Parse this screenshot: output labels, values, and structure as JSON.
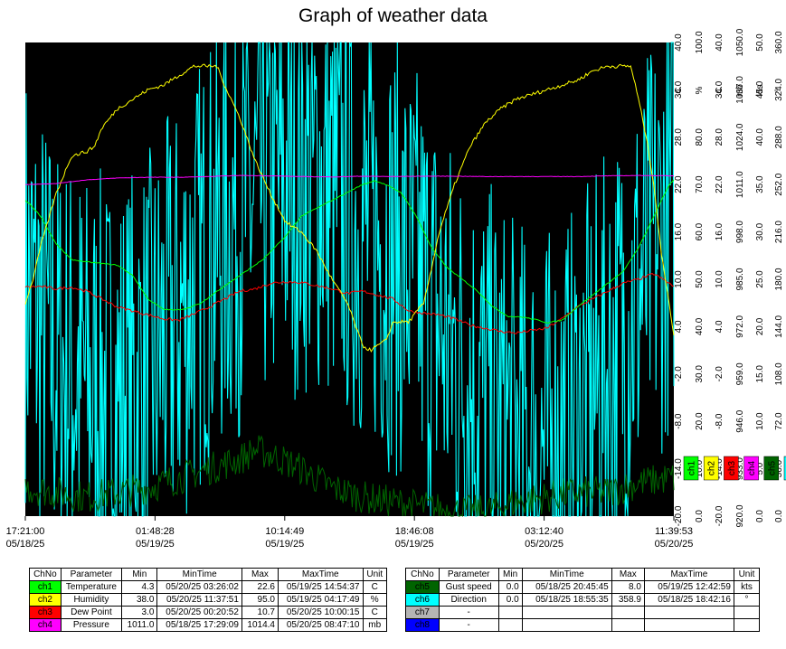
{
  "title": "Graph of weather data",
  "colors": {
    "plot_bg": "#000000",
    "ch1": "#00ff00",
    "ch2": "#ffff00",
    "ch3": "#ff0000",
    "ch4": "#ff00ff",
    "ch5": "#006400",
    "ch6": "#00ffff",
    "ch7": "#b4b4b4",
    "ch8": "#0000ff"
  },
  "chart_data": {
    "type": "line",
    "title": "Graph of weather data",
    "x_ticks": [
      {
        "time": "17:21:00",
        "date": "05/18/25"
      },
      {
        "time": "01:48:28",
        "date": "05/19/25"
      },
      {
        "time": "10:14:49",
        "date": "05/19/25"
      },
      {
        "time": "18:46:08",
        "date": "05/19/25"
      },
      {
        "time": "03:12:40",
        "date": "05/20/25"
      },
      {
        "time": "11:39:53",
        "date": "05/20/25"
      }
    ],
    "x_range_hours": [
      0,
      42.3
    ],
    "scales": [
      {
        "unit": "C",
        "ticks": [
          "40.0",
          "34.0",
          "28.0",
          "22.0",
          "16.0",
          "10.0",
          "4.0",
          "-2.0",
          "-8.0",
          "-14.0",
          "-20.0"
        ]
      },
      {
        "unit": "%",
        "ticks": [
          "100.0",
          "",
          "80.0",
          "70.0",
          "60.0",
          "50.0",
          "40.0",
          "30.0",
          "20.0",
          "10.0",
          "0.0"
        ]
      },
      {
        "unit": "C",
        "ticks": [
          "40.0",
          "34.0",
          "28.0",
          "22.0",
          "16.0",
          "10.0",
          "4.0",
          "-2.0",
          "-8.0",
          "-14.0",
          "-20.0"
        ]
      },
      {
        "unit": "mb",
        "ticks": [
          "1050.0",
          "1037.0",
          "1024.0",
          "1011.0",
          "998.0",
          "985.0",
          "972.0",
          "959.0",
          "946.0",
          "933.0",
          "920.0"
        ]
      },
      {
        "unit": "kts",
        "ticks": [
          "50.0",
          "45.0",
          "40.0",
          "35.0",
          "30.0",
          "25.0",
          "20.0",
          "15.0",
          "10.0",
          "5.0",
          "0.0"
        ]
      },
      {
        "unit": "°",
        "ticks": [
          "360.0",
          "324.0",
          "288.0",
          "252.0",
          "216.0",
          "180.0",
          "144.0",
          "108.0",
          "72.0",
          "36.0",
          "0.0"
        ]
      }
    ],
    "series": [
      {
        "name": "Temperature",
        "unit": "C",
        "channel": "ch1",
        "points": [
          [
            0,
            20
          ],
          [
            0.3,
            19.5
          ],
          [
            1,
            18
          ],
          [
            2,
            14.5
          ],
          [
            3,
            12.5
          ],
          [
            4,
            12.2
          ],
          [
            5,
            12
          ],
          [
            6,
            11.8
          ],
          [
            7,
            10.5
          ],
          [
            8,
            7.5
          ],
          [
            9,
            6.2
          ],
          [
            9.8,
            6.1
          ],
          [
            10.5,
            6.3
          ],
          [
            11.5,
            7
          ],
          [
            12.5,
            8.5
          ],
          [
            14,
            10.5
          ],
          [
            15.5,
            12.5
          ],
          [
            17,
            15.5
          ],
          [
            18,
            18
          ],
          [
            19,
            19
          ],
          [
            20,
            20
          ],
          [
            21,
            21
          ],
          [
            22,
            22
          ],
          [
            22.8,
            22.5
          ],
          [
            23.5,
            22
          ],
          [
            24.5,
            21
          ],
          [
            25.5,
            18
          ],
          [
            26.5,
            14
          ],
          [
            27.5,
            11.5
          ],
          [
            28.5,
            10
          ],
          [
            29.5,
            8.5
          ],
          [
            30.5,
            6.5
          ],
          [
            31.5,
            5.3
          ],
          [
            32.5,
            5.2
          ],
          [
            33.5,
            4.8
          ],
          [
            34,
            4.5
          ],
          [
            35,
            4.8
          ],
          [
            36,
            6.5
          ],
          [
            37,
            8
          ],
          [
            38,
            9.5
          ],
          [
            39,
            11
          ],
          [
            40,
            14
          ],
          [
            41,
            18
          ],
          [
            42,
            22
          ],
          [
            42.3,
            22.6
          ]
        ]
      },
      {
        "name": "Humidity",
        "unit": "%",
        "channel": "ch2",
        "points": [
          [
            0,
            45
          ],
          [
            0.5,
            50
          ],
          [
            1,
            57
          ],
          [
            2,
            68
          ],
          [
            3,
            76
          ],
          [
            4,
            77
          ],
          [
            4.5,
            78
          ],
          [
            5,
            82
          ],
          [
            6,
            86
          ],
          [
            7,
            88
          ],
          [
            8,
            90
          ],
          [
            9,
            91
          ],
          [
            10,
            93
          ],
          [
            11,
            95
          ],
          [
            12.5,
            95
          ],
          [
            13,
            91
          ],
          [
            14,
            84
          ],
          [
            15,
            75
          ],
          [
            16,
            68
          ],
          [
            17,
            62
          ],
          [
            18,
            60
          ],
          [
            19,
            56
          ],
          [
            20,
            50
          ],
          [
            21,
            45
          ],
          [
            22,
            36
          ],
          [
            22.5,
            35
          ],
          [
            23.5,
            37
          ],
          [
            24,
            41
          ],
          [
            25,
            41
          ],
          [
            26,
            45
          ],
          [
            27,
            60
          ],
          [
            28,
            70
          ],
          [
            29,
            78
          ],
          [
            30,
            83
          ],
          [
            31,
            86
          ],
          [
            32,
            88
          ],
          [
            33,
            89
          ],
          [
            34,
            90
          ],
          [
            35,
            91
          ],
          [
            36,
            92
          ],
          [
            37,
            94
          ],
          [
            38,
            95
          ],
          [
            39.5,
            95
          ],
          [
            40,
            88
          ],
          [
            40.5,
            80
          ],
          [
            41,
            70
          ],
          [
            41.5,
            55
          ],
          [
            42,
            45
          ],
          [
            42.3,
            38
          ]
        ]
      },
      {
        "name": "Dew Point",
        "unit": "C",
        "channel": "ch3",
        "points": [
          [
            0,
            9
          ],
          [
            1,
            9.1
          ],
          [
            2,
            8.8
          ],
          [
            3,
            9
          ],
          [
            4,
            8.5
          ],
          [
            5,
            7.5
          ],
          [
            6,
            6.5
          ],
          [
            7,
            6
          ],
          [
            8,
            5.5
          ],
          [
            9,
            5
          ],
          [
            10,
            4.8
          ],
          [
            11,
            5.6
          ],
          [
            12,
            6.5
          ],
          [
            13,
            7.5
          ],
          [
            14,
            8.5
          ],
          [
            15,
            8.8
          ],
          [
            16,
            9.5
          ],
          [
            17,
            9.7
          ],
          [
            18,
            9.6
          ],
          [
            19,
            9.2
          ],
          [
            20,
            8.8
          ],
          [
            21,
            8.2
          ],
          [
            22,
            8.5
          ],
          [
            23,
            8
          ],
          [
            24,
            7.5
          ],
          [
            25,
            6
          ],
          [
            26,
            5.7
          ],
          [
            27,
            5.5
          ],
          [
            28,
            5
          ],
          [
            29,
            4.2
          ],
          [
            30,
            3.8
          ],
          [
            31,
            3.4
          ],
          [
            32,
            3.2
          ],
          [
            33,
            3.5
          ],
          [
            34,
            3.8
          ],
          [
            35,
            5
          ],
          [
            36,
            6.5
          ],
          [
            37,
            7.5
          ],
          [
            38,
            8.5
          ],
          [
            39,
            9.5
          ],
          [
            40,
            10
          ],
          [
            41,
            10.7
          ],
          [
            42,
            9.5
          ],
          [
            42.3,
            9
          ]
        ]
      },
      {
        "name": "Pressure",
        "unit": "mb",
        "channel": "ch4",
        "points": [
          [
            0,
            1011
          ],
          [
            2,
            1011.3
          ],
          [
            4,
            1012.3
          ],
          [
            6,
            1012.8
          ],
          [
            8,
            1013
          ],
          [
            10,
            1013
          ],
          [
            12,
            1013.2
          ],
          [
            14,
            1013.5
          ],
          [
            16,
            1013.4
          ],
          [
            18,
            1013.2
          ],
          [
            20,
            1013.1
          ],
          [
            22,
            1013.3
          ],
          [
            24,
            1013.2
          ],
          [
            26,
            1013.3
          ],
          [
            28,
            1013.3
          ],
          [
            30,
            1013.2
          ],
          [
            32,
            1013.2
          ],
          [
            34,
            1013.2
          ],
          [
            36,
            1013.2
          ],
          [
            38,
            1013.4
          ],
          [
            40,
            1013.5
          ],
          [
            42.3,
            1013.4
          ]
        ]
      },
      {
        "name": "Gust speed",
        "unit": "kts",
        "channel": "ch5",
        "points": [
          [
            0,
            3
          ],
          [
            2,
            2.5
          ],
          [
            4,
            2
          ],
          [
            6,
            2.5
          ],
          [
            8,
            3
          ],
          [
            10,
            4
          ],
          [
            12,
            5
          ],
          [
            14,
            6
          ],
          [
            15,
            7
          ],
          [
            16,
            6.5
          ],
          [
            18,
            5
          ],
          [
            19,
            4
          ],
          [
            20,
            3
          ],
          [
            22,
            2
          ],
          [
            24,
            1.5
          ],
          [
            26,
            1
          ],
          [
            28,
            0.5
          ],
          [
            30,
            0.5
          ],
          [
            32,
            1.5
          ],
          [
            34,
            2
          ],
          [
            36,
            2.5
          ],
          [
            38,
            2.5
          ],
          [
            40,
            3.5
          ],
          [
            42,
            4
          ],
          [
            42.3,
            4
          ]
        ]
      },
      {
        "name": "Direction",
        "unit": "°",
        "channel": "ch6",
        "points": [
          [
            0,
            180
          ],
          [
            2,
            120
          ],
          [
            4,
            100
          ],
          [
            6,
            90
          ],
          [
            8,
            110
          ],
          [
            10,
            150
          ],
          [
            12,
            200
          ],
          [
            14,
            230
          ],
          [
            16,
            250
          ],
          [
            18,
            260
          ],
          [
            20,
            250
          ],
          [
            22,
            220
          ],
          [
            24,
            200
          ],
          [
            26,
            170
          ],
          [
            28,
            120
          ],
          [
            30,
            90
          ],
          [
            32,
            60
          ],
          [
            34,
            50
          ],
          [
            36,
            70
          ],
          [
            38,
            110
          ],
          [
            40,
            170
          ],
          [
            42,
            230
          ],
          [
            42.3,
            250
          ]
        ]
      }
    ]
  },
  "legend_channels": [
    {
      "label": "ch1",
      "color": "#00ff00"
    },
    {
      "label": "ch2",
      "color": "#ffff00"
    },
    {
      "label": "ch3",
      "color": "#ff0000"
    },
    {
      "label": "ch4",
      "color": "#ff00ff"
    },
    {
      "label": "ch5",
      "color": "#006400"
    },
    {
      "label": "ch6",
      "color": "#00ffff"
    }
  ],
  "table_left": {
    "headers": [
      "ChNo",
      "Parameter",
      "Min",
      "MinTime",
      "Max",
      "MaxTime",
      "Unit"
    ],
    "rows": [
      {
        "ch": "ch1",
        "color": "#00ff00",
        "param": "Temperature",
        "min": "4.3",
        "mintime": "05/20/25 03:26:02",
        "max": "22.6",
        "maxtime": "05/19/25 14:54:37",
        "unit": "C"
      },
      {
        "ch": "ch2",
        "color": "#ffff00",
        "param": "Humidity",
        "min": "38.0",
        "mintime": "05/20/25 11:37:51",
        "max": "95.0",
        "maxtime": "05/19/25 04:17:49",
        "unit": "%"
      },
      {
        "ch": "ch3",
        "color": "#ff0000",
        "param": "Dew Point",
        "min": "3.0",
        "mintime": "05/20/25 00:20:52",
        "max": "10.7",
        "maxtime": "05/20/25 10:00:15",
        "unit": "C"
      },
      {
        "ch": "ch4",
        "color": "#ff00ff",
        "param": "Pressure",
        "min": "1011.0",
        "mintime": "05/18/25 17:29:09",
        "max": "1014.4",
        "maxtime": "05/20/25 08:47:10",
        "unit": "mb"
      }
    ]
  },
  "table_right": {
    "headers": [
      "ChNo",
      "Parameter",
      "Min",
      "MinTime",
      "Max",
      "MaxTime",
      "Unit"
    ],
    "rows": [
      {
        "ch": "ch5",
        "color": "#006400",
        "param": "Gust speed",
        "min": "0.0",
        "mintime": "05/18/25 20:45:45",
        "max": "8.0",
        "maxtime": "05/19/25 12:42:59",
        "unit": "kts"
      },
      {
        "ch": "ch6",
        "color": "#00ffff",
        "param": "Direction",
        "min": "0.0",
        "mintime": "05/18/25 18:55:35",
        "max": "358.9",
        "maxtime": "05/18/25 18:42:16",
        "unit": "°"
      },
      {
        "ch": "ch7",
        "color": "#b4b4b4",
        "param": "-",
        "min": "",
        "mintime": "",
        "max": "",
        "maxtime": "",
        "unit": ""
      },
      {
        "ch": "ch8",
        "color": "#0000ff",
        "param": "-",
        "min": "",
        "mintime": "",
        "max": "",
        "maxtime": "",
        "unit": ""
      }
    ]
  }
}
